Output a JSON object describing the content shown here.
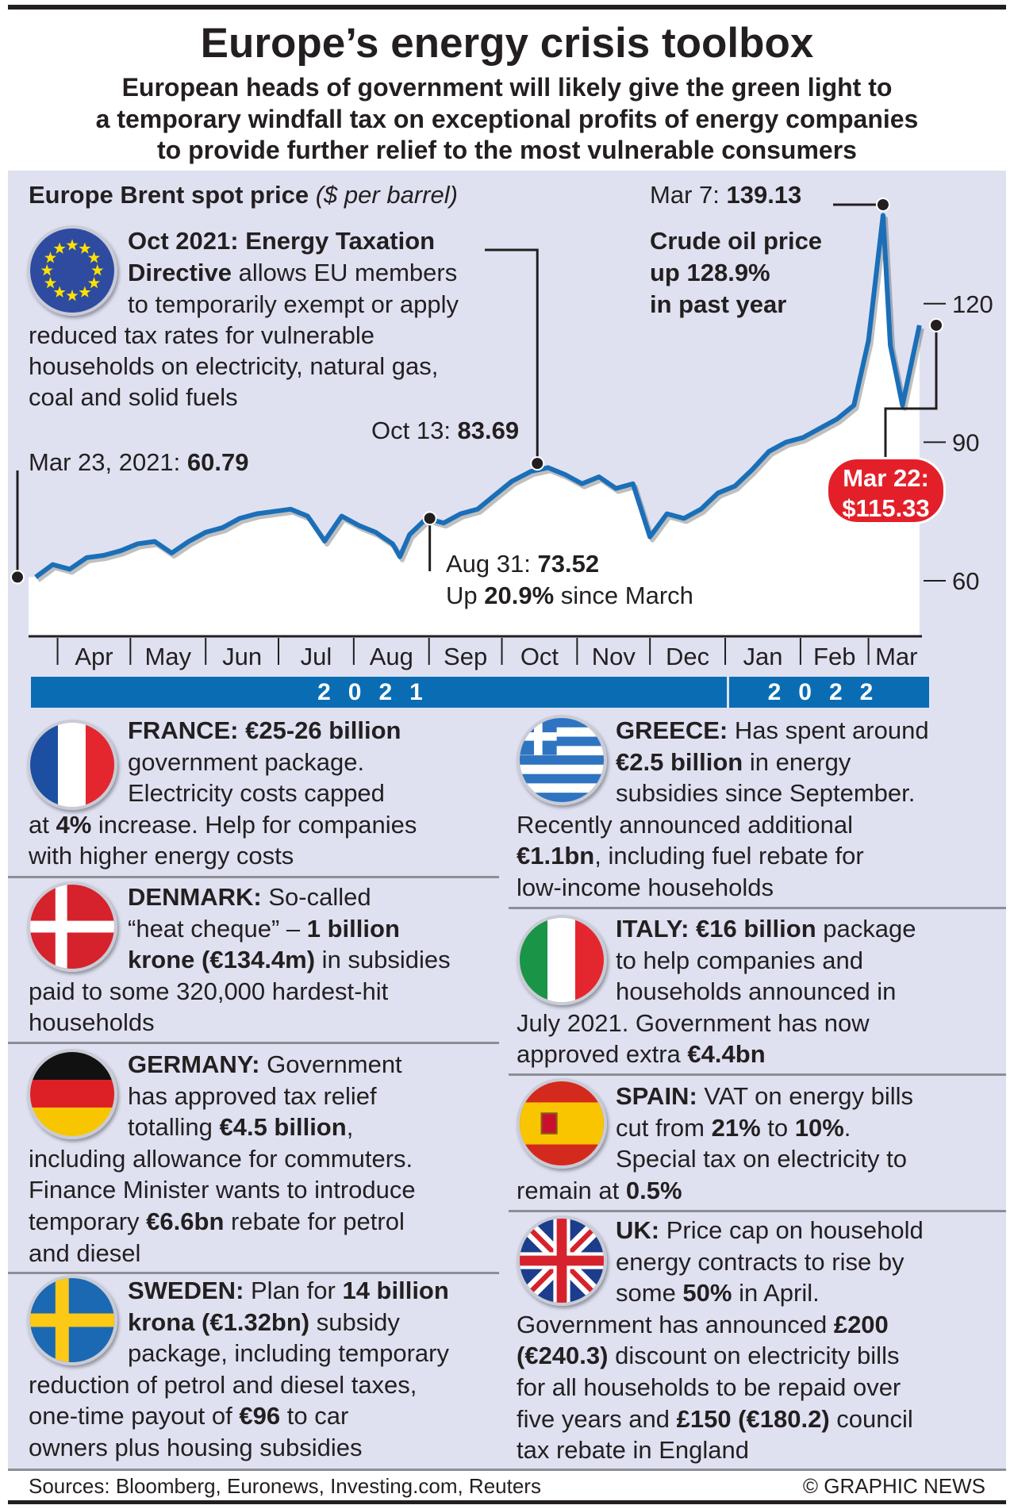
{
  "header": {
    "title": "Europe’s energy crisis toolbox",
    "subtitle": [
      "European heads of government will likely give the green light to",
      "a temporary windfall tax on exceptional profits of energy companies",
      "to provide further relief to the most vulnerable consumers"
    ]
  },
  "chart_data": {
    "type": "line",
    "title": "Europe Brent spot price",
    "unit": "($ per barrel)",
    "ylim": [
      60,
      140
    ],
    "yticks": [
      60,
      90,
      120
    ],
    "months": [
      "Apr",
      "May",
      "Jun",
      "Jul",
      "Aug",
      "Sep",
      "Oct",
      "Nov",
      "Dec",
      "Jan",
      "Feb",
      "Mar"
    ],
    "years": [
      "2021",
      "2022"
    ],
    "series": [
      {
        "name": "Brent",
        "points": [
          [
            "2021-03-23",
            60.79
          ],
          [
            "2021-03-30",
            63.5
          ],
          [
            "2021-04-06",
            62.5
          ],
          [
            "2021-04-13",
            65
          ],
          [
            "2021-04-20",
            65.5
          ],
          [
            "2021-04-27",
            66.5
          ],
          [
            "2021-05-04",
            68
          ],
          [
            "2021-05-11",
            68.5
          ],
          [
            "2021-05-18",
            66
          ],
          [
            "2021-05-25",
            68.5
          ],
          [
            "2021-06-01",
            70.5
          ],
          [
            "2021-06-08",
            71.5
          ],
          [
            "2021-06-15",
            73.5
          ],
          [
            "2021-06-22",
            74.5
          ],
          [
            "2021-06-29",
            75
          ],
          [
            "2021-07-06",
            75.5
          ],
          [
            "2021-07-13",
            74
          ],
          [
            "2021-07-20",
            68.6
          ],
          [
            "2021-07-27",
            74
          ],
          [
            "2021-08-03",
            72
          ],
          [
            "2021-08-10",
            70.5
          ],
          [
            "2021-08-17",
            68
          ],
          [
            "2021-08-20",
            65.2
          ],
          [
            "2021-08-24",
            70
          ],
          [
            "2021-08-31",
            73.52
          ],
          [
            "2021-09-07",
            72.5
          ],
          [
            "2021-09-14",
            74.5
          ],
          [
            "2021-09-21",
            75.5
          ],
          [
            "2021-09-28",
            78.5
          ],
          [
            "2021-10-05",
            81.5
          ],
          [
            "2021-10-13",
            83.69
          ],
          [
            "2021-10-20",
            84.5
          ],
          [
            "2021-10-27",
            83
          ],
          [
            "2021-11-03",
            81
          ],
          [
            "2021-11-10",
            82.5
          ],
          [
            "2021-11-17",
            80
          ],
          [
            "2021-11-24",
            81
          ],
          [
            "2021-12-01",
            69.5
          ],
          [
            "2021-12-08",
            74.5
          ],
          [
            "2021-12-15",
            73.5
          ],
          [
            "2021-12-22",
            75.5
          ],
          [
            "2021-12-29",
            79
          ],
          [
            "2022-01-05",
            80.5
          ],
          [
            "2022-01-12",
            84
          ],
          [
            "2022-01-19",
            88
          ],
          [
            "2022-01-26",
            90
          ],
          [
            "2022-02-02",
            91
          ],
          [
            "2022-02-09",
            93
          ],
          [
            "2022-02-16",
            95
          ],
          [
            "2022-02-23",
            98
          ],
          [
            "2022-03-01",
            112
          ],
          [
            "2022-03-07",
            139.13
          ],
          [
            "2022-03-10",
            111
          ],
          [
            "2022-03-15",
            98
          ],
          [
            "2022-03-22",
            115.33
          ]
        ]
      }
    ],
    "annotations": {
      "start": {
        "date": "Mar 23, 2021: ",
        "value": "60.79"
      },
      "oct13": {
        "date": "Oct 13: ",
        "value": "83.69"
      },
      "aug31": {
        "date": "Aug 31: ",
        "value": "73.52",
        "line2_pre": "Up ",
        "line2_bold": "20.9%",
        "line2_post": " since March"
      },
      "mar7": {
        "date": "Mar 7: ",
        "value": "139.13"
      },
      "mar22": {
        "date": "Mar 22:",
        "value": "$115.33"
      },
      "crude": [
        "Crude oil price",
        "up 128.9%",
        "in past year"
      ],
      "directive": {
        "bold1": "Oct 2021: Energy Taxation",
        "bold2": "Directive",
        "rest2": " allows EU members",
        "l3": "to temporarily exempt or apply",
        "l4": "reduced tax rates for vulnerable",
        "l5": "households on electricity, natural gas,",
        "l6": "coal and solid fuels"
      }
    },
    "colors": {
      "line": "#1a6fb8",
      "highlight": "#e3202a",
      "yearbar": "#0a6db3"
    }
  },
  "countries": [
    {
      "id": "france",
      "col": 0,
      "lines": [
        [
          [
            "FRANCE: €25-26 billion",
            1
          ]
        ],
        [
          [
            "government package.",
            0
          ]
        ],
        [
          [
            "Electricity costs capped",
            0
          ]
        ],
        [
          [
            "at ",
            0
          ],
          [
            "4%",
            1
          ],
          [
            " increase. Help for companies",
            0
          ]
        ],
        [
          [
            "with higher energy costs",
            0
          ]
        ]
      ]
    },
    {
      "id": "denmark",
      "col": 0,
      "lines": [
        [
          [
            "DENMARK:",
            1
          ],
          [
            " So-called",
            0
          ]
        ],
        [
          [
            "“heat cheque” – ",
            0
          ],
          [
            "1 billion",
            1
          ]
        ],
        [
          [
            "krone (€134.4m)",
            1
          ],
          [
            " in subsidies",
            0
          ]
        ],
        [
          [
            "paid to some 320,000 hardest-hit",
            0
          ]
        ],
        [
          [
            "households",
            0
          ]
        ]
      ]
    },
    {
      "id": "germany",
      "col": 0,
      "lines": [
        [
          [
            "GERMANY:",
            1
          ],
          [
            " Government",
            0
          ]
        ],
        [
          [
            "has approved tax relief",
            0
          ]
        ],
        [
          [
            "totalling ",
            0
          ],
          [
            "€4.5 billion",
            1
          ],
          [
            ",",
            0
          ]
        ],
        [
          [
            "including allowance for commuters.",
            0
          ]
        ],
        [
          [
            "Finance Minister wants to introduce",
            0
          ]
        ],
        [
          [
            "temporary ",
            0
          ],
          [
            "€6.6bn",
            1
          ],
          [
            " rebate for petrol",
            0
          ]
        ],
        [
          [
            "and diesel",
            0
          ]
        ]
      ]
    },
    {
      "id": "sweden",
      "col": 0,
      "lines": [
        [
          [
            "SWEDEN:",
            1
          ],
          [
            " Plan for ",
            0
          ],
          [
            "14 billion",
            1
          ]
        ],
        [
          [
            "krona (€1.32bn)",
            1
          ],
          [
            " subsidy",
            0
          ]
        ],
        [
          [
            "package, including temporary",
            0
          ]
        ],
        [
          [
            "reduction of petrol and diesel taxes,",
            0
          ]
        ],
        [
          [
            "one-time payout of ",
            0
          ],
          [
            "€96",
            1
          ],
          [
            " to car",
            0
          ]
        ],
        [
          [
            "owners plus housing subsidies",
            0
          ]
        ]
      ]
    },
    {
      "id": "greece",
      "col": 1,
      "lines": [
        [
          [
            "GREECE:",
            1
          ],
          [
            " Has spent around",
            0
          ]
        ],
        [
          [
            "€2.5 billion",
            1
          ],
          [
            " in energy",
            0
          ]
        ],
        [
          [
            "subsidies since September.",
            0
          ]
        ],
        [
          [
            "Recently announced additional",
            0
          ]
        ],
        [
          [
            "€1.1bn",
            1
          ],
          [
            ", including fuel rebate for",
            0
          ]
        ],
        [
          [
            "low-income households",
            0
          ]
        ]
      ]
    },
    {
      "id": "italy",
      "col": 1,
      "lines": [
        [
          [
            "ITALY: €16 billion",
            1
          ],
          [
            " package",
            0
          ]
        ],
        [
          [
            "to help companies and",
            0
          ]
        ],
        [
          [
            "households announced in",
            0
          ]
        ],
        [
          [
            "July 2021. Government has now",
            0
          ]
        ],
        [
          [
            "approved extra ",
            0
          ],
          [
            "€4.4bn",
            1
          ]
        ]
      ]
    },
    {
      "id": "spain",
      "col": 1,
      "lines": [
        [
          [
            "SPAIN:",
            1
          ],
          [
            " VAT on energy bills",
            0
          ]
        ],
        [
          [
            "cut from ",
            0
          ],
          [
            "21%",
            1
          ],
          [
            " to ",
            0
          ],
          [
            "10%",
            1
          ],
          [
            ".",
            0
          ]
        ],
        [
          [
            "Special tax on electricity to",
            0
          ]
        ],
        [
          [
            "remain at ",
            0
          ],
          [
            "0.5%",
            1
          ]
        ]
      ]
    },
    {
      "id": "uk",
      "col": 1,
      "lines": [
        [
          [
            "UK:",
            1
          ],
          [
            " Price cap on household",
            0
          ]
        ],
        [
          [
            "energy contracts to rise by",
            0
          ]
        ],
        [
          [
            "some ",
            0
          ],
          [
            "50%",
            1
          ],
          [
            " in April.",
            0
          ]
        ],
        [
          [
            "Government has announced ",
            0
          ],
          [
            "£200",
            1
          ]
        ],
        [
          [
            "(€240.3)",
            1
          ],
          [
            " discount on electricity bills",
            0
          ]
        ],
        [
          [
            "for all households to be repaid over",
            0
          ]
        ],
        [
          [
            "five years and ",
            0
          ],
          [
            "£150 (€180.2)",
            1
          ],
          [
            " council",
            0
          ]
        ],
        [
          [
            "tax rebate in England",
            0
          ]
        ]
      ]
    }
  ],
  "footer": {
    "sources": "Sources: Bloomberg, Euronews, Investing.com, Reuters",
    "credit": "© GRAPHIC NEWS"
  }
}
